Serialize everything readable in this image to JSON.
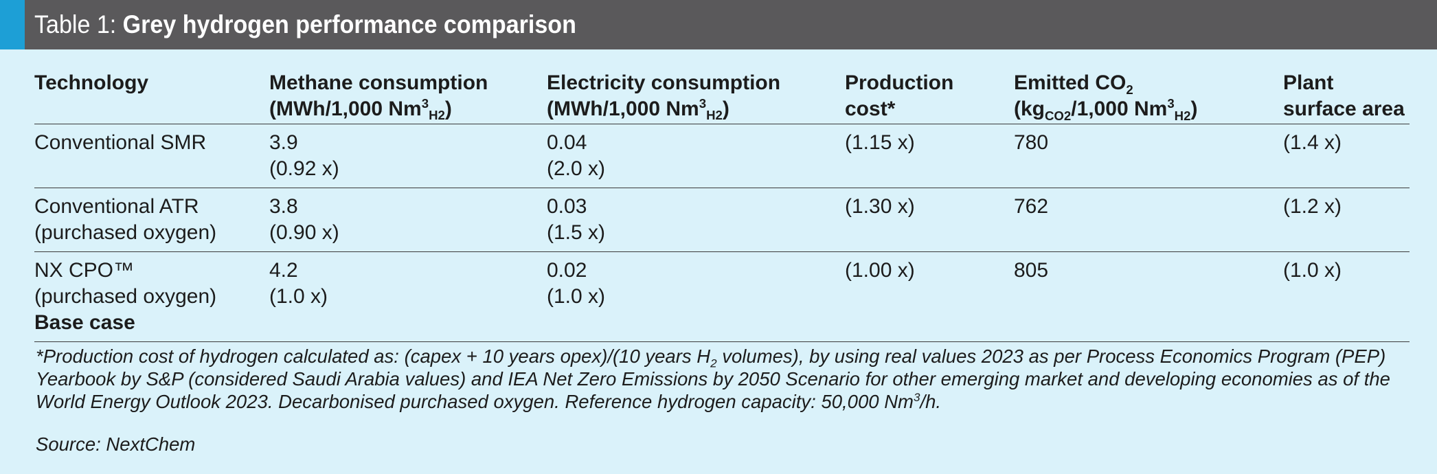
{
  "header": {
    "prefix": "Table 1: ",
    "title": "Grey hydrogen performance comparison"
  },
  "columns": {
    "technology": "Technology",
    "methane_l1": "Methane consumption",
    "methane_l2_pre": "(MWh/1,000 Nm",
    "methane_sup": "3",
    "methane_sub": "H2",
    "methane_l2_post": ")",
    "electricity_l1": "Electricity consumption",
    "electricity_l2_pre": "(MWh/1,000 Nm",
    "electricity_sup": "3",
    "electricity_sub": "H2",
    "electricity_l2_post": ")",
    "cost_l1": "Production",
    "cost_l2": "cost*",
    "co2_l1_pre": "Emitted CO",
    "co2_l1_sub": "2",
    "co2_l2_a": "(kg",
    "co2_l2_sub1": "CO2",
    "co2_l2_b": "/1,000 Nm",
    "co2_l2_sup": "3",
    "co2_l2_sub2": "H2",
    "co2_l2_c": ")",
    "area_l1": "Plant",
    "area_l2": "surface area"
  },
  "rows": [
    {
      "tech_l1": "Conventional SMR",
      "tech_l2": "",
      "tech_l3": "",
      "methane_val": "3.9",
      "methane_rel": "(0.92 x)",
      "elec_val": "0.04",
      "elec_rel": "(2.0 x)",
      "cost": "(1.15 x)",
      "co2": "780",
      "area": "(1.4 x)"
    },
    {
      "tech_l1": "Conventional ATR",
      "tech_l2": "(purchased oxygen)",
      "tech_l3": "",
      "methane_val": "3.8",
      "methane_rel": "(0.90 x)",
      "elec_val": "0.03",
      "elec_rel": "(1.5 x)",
      "cost": "(1.30 x)",
      "co2": "762",
      "area": "(1.2 x)"
    },
    {
      "tech_l1": "NX CPO™",
      "tech_l2": "(purchased oxygen)",
      "tech_l3": "Base case",
      "methane_val": "4.2",
      "methane_rel": "(1.0 x)",
      "elec_val": "0.02",
      "elec_rel": "(1.0 x)",
      "cost": "(1.00 x)",
      "co2": "805",
      "area": "(1.0 x)"
    }
  ],
  "footnote": {
    "part1": "*Production cost of hydrogen calculated as: (capex + 10 years opex)/(10 years H",
    "sub": "2",
    "part2": " volumes), by using real values 2023 as per Process Economics Program (PEP) Yearbook by S&P (considered Saudi Arabia values) and IEA Net Zero Emissions by 2050 Scenario for other emerging market and developing economies as of the World Energy Outlook 2023. Decarbonised purchased oxygen. Reference hydrogen capacity: 50,000 Nm",
    "sup": "3",
    "part3": "/h."
  },
  "source": "Source: NextChem",
  "colors": {
    "background": "#daf2fa",
    "title_bar": "#5a595b",
    "accent": "#1d9fd6"
  }
}
